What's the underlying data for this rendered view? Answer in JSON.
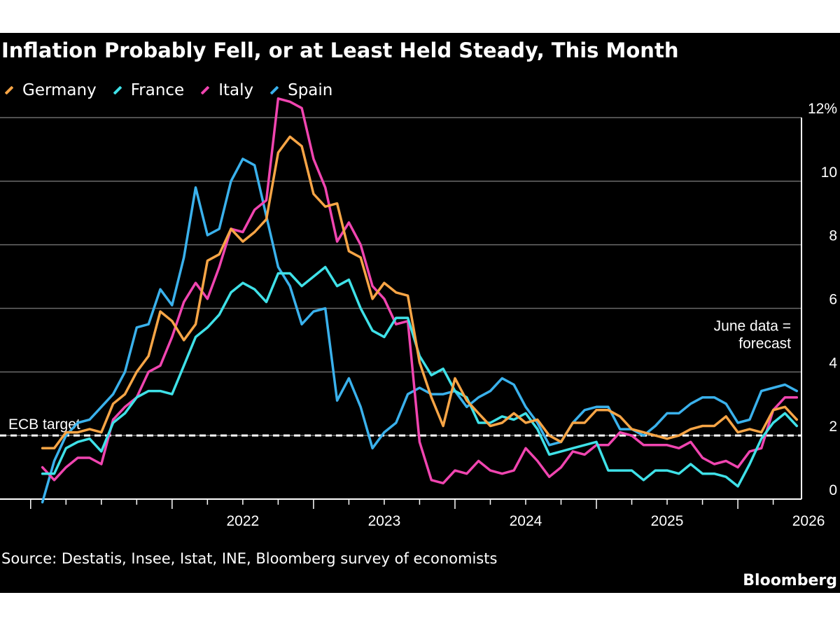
{
  "chart_data": {
    "type": "line",
    "title": "Inflation Probably Fell, or at Least Held Steady, This Month",
    "source": "Source: Destatis, Insee, Istat, INE, Bloomberg survey of economists",
    "brand": "Bloomberg",
    "xlim": [
      "2021-02",
      "2026-06"
    ],
    "ylim": [
      0,
      12
    ],
    "y_axis_side": "right",
    "x_ticks": [
      "2022",
      "2023",
      "2024",
      "2025",
      "2026"
    ],
    "y_ticks": [
      "0",
      "2",
      "4",
      "6",
      "8",
      "10",
      "12%"
    ],
    "grid": true,
    "legend_position": "top-left",
    "reference_line": {
      "label": "ECB target",
      "value": 2,
      "style": "dashed",
      "color": "#ffffff"
    },
    "annotations": [
      {
        "text": "June data =\nforecast",
        "x": "2026-06",
        "y": 5.3
      }
    ],
    "x": [
      "2021-02",
      "2021-03",
      "2021-04",
      "2021-05",
      "2021-06",
      "2021-07",
      "2021-08",
      "2021-09",
      "2021-10",
      "2021-11",
      "2021-12",
      "2022-01",
      "2022-02",
      "2022-03",
      "2022-04",
      "2022-05",
      "2022-06",
      "2022-07",
      "2022-08",
      "2022-09",
      "2022-10",
      "2022-11",
      "2022-12",
      "2023-01",
      "2023-02",
      "2023-03",
      "2023-04",
      "2023-05",
      "2023-06",
      "2023-07",
      "2023-08",
      "2023-09",
      "2023-10",
      "2023-11",
      "2023-12",
      "2024-01",
      "2024-02",
      "2024-03",
      "2024-04",
      "2024-05",
      "2024-06",
      "2024-07",
      "2024-08",
      "2024-09",
      "2024-10",
      "2024-11",
      "2024-12",
      "2025-01",
      "2025-02",
      "2025-03",
      "2025-04",
      "2025-05",
      "2025-06",
      "2025-07",
      "2025-08",
      "2025-09",
      "2025-10",
      "2025-11",
      "2025-12",
      "2026-01",
      "2026-02",
      "2026-03",
      "2026-04",
      "2026-05",
      "2026-06"
    ],
    "series": [
      {
        "name": "Germany",
        "color": "#f7a546",
        "values": [
          1.6,
          1.6,
          2.1,
          2.1,
          2.2,
          2.1,
          3.0,
          3.3,
          4.0,
          4.5,
          5.9,
          5.6,
          5.0,
          5.5,
          7.5,
          7.7,
          8.5,
          8.1,
          8.4,
          8.8,
          10.9,
          11.4,
          11.1,
          9.6,
          9.2,
          9.3,
          7.8,
          7.6,
          6.3,
          6.8,
          6.5,
          6.4,
          4.3,
          3.2,
          2.3,
          3.8,
          3.1,
          2.7,
          2.3,
          2.4,
          2.7,
          2.4,
          2.5,
          2.0,
          1.8,
          2.4,
          2.4,
          2.8,
          2.8,
          2.6,
          2.2,
          2.1,
          2.0,
          1.9,
          2.0,
          2.2,
          2.3,
          2.3,
          2.6,
          2.1,
          2.2,
          2.1,
          2.8,
          2.9,
          2.5
        ]
      },
      {
        "name": "France",
        "color": "#3fe1e8",
        "values": [
          0.8,
          0.8,
          1.6,
          1.8,
          1.9,
          1.5,
          2.4,
          2.7,
          3.2,
          3.4,
          3.4,
          3.3,
          4.2,
          5.1,
          5.4,
          5.8,
          6.5,
          6.8,
          6.6,
          6.2,
          7.1,
          7.1,
          6.7,
          7.0,
          7.3,
          6.7,
          6.9,
          6.0,
          5.3,
          5.1,
          5.7,
          5.7,
          4.5,
          3.9,
          4.1,
          3.4,
          3.2,
          2.4,
          2.4,
          2.6,
          2.5,
          2.7,
          2.2,
          1.4,
          1.5,
          1.6,
          1.7,
          1.8,
          0.9,
          0.9,
          0.9,
          0.6,
          0.9,
          0.9,
          0.8,
          1.1,
          0.8,
          0.8,
          0.7,
          0.4,
          1.1,
          1.9,
          2.4,
          2.7,
          2.3
        ]
      },
      {
        "name": "Italy",
        "color": "#f045b0",
        "values": [
          1.0,
          0.6,
          1.0,
          1.3,
          1.3,
          1.1,
          2.5,
          2.9,
          3.2,
          4.0,
          4.2,
          5.1,
          6.2,
          6.8,
          6.3,
          7.3,
          8.5,
          8.4,
          9.1,
          9.4,
          12.6,
          12.5,
          12.3,
          10.7,
          9.8,
          8.1,
          8.7,
          8.0,
          6.7,
          6.3,
          5.5,
          5.6,
          1.8,
          0.6,
          0.5,
          0.9,
          0.8,
          1.2,
          0.9,
          0.8,
          0.9,
          1.6,
          1.2,
          0.7,
          1.0,
          1.5,
          1.4,
          1.7,
          1.7,
          2.1,
          2.0,
          1.7,
          1.7,
          1.7,
          1.6,
          1.8,
          1.3,
          1.1,
          1.2,
          1.0,
          1.5,
          1.6,
          2.8,
          3.2,
          3.2
        ]
      },
      {
        "name": "Spain",
        "color": "#3ab1ec",
        "values": [
          -0.1,
          1.2,
          2.0,
          2.4,
          2.5,
          2.9,
          3.3,
          4.0,
          5.4,
          5.5,
          6.6,
          6.1,
          7.6,
          9.8,
          8.3,
          8.5,
          10.0,
          10.7,
          10.5,
          8.9,
          7.3,
          6.7,
          5.5,
          5.9,
          6.0,
          3.1,
          3.8,
          2.9,
          1.6,
          2.1,
          2.4,
          3.3,
          3.5,
          3.3,
          3.3,
          3.4,
          2.9,
          3.2,
          3.4,
          3.8,
          3.6,
          2.9,
          2.4,
          1.7,
          1.8,
          2.4,
          2.8,
          2.9,
          2.9,
          2.2,
          2.2,
          2.0,
          2.3,
          2.7,
          2.7,
          3.0,
          3.2,
          3.2,
          3.0,
          2.4,
          2.5,
          3.4,
          3.5,
          3.6,
          3.4
        ]
      }
    ]
  }
}
